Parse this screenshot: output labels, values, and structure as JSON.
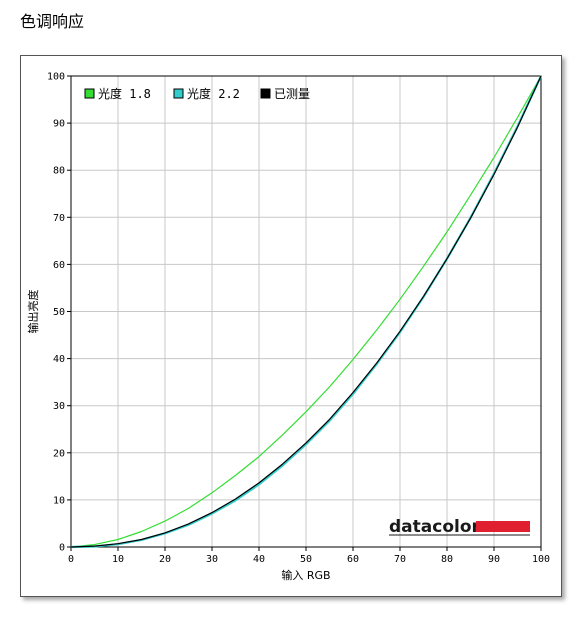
{
  "page": {
    "title": "色调响应"
  },
  "colors": {
    "gamma18": "#33dd33",
    "gamma22": "#33cccc",
    "measured": "#000000",
    "logo_bar": "#e02030"
  },
  "logo": {
    "text": "datacolor"
  },
  "chart_data": {
    "type": "line",
    "title": "",
    "xlabel": "输入 RGB",
    "ylabel": "输出亮度",
    "xlim": [
      0,
      100
    ],
    "ylim": [
      0,
      100
    ],
    "x_ticks": [
      0,
      10,
      20,
      30,
      40,
      50,
      60,
      70,
      80,
      90,
      100
    ],
    "y_ticks": [
      0,
      10,
      20,
      30,
      40,
      50,
      60,
      70,
      80,
      90,
      100
    ],
    "grid": true,
    "legend_position": "top-left",
    "series": [
      {
        "name": "光度 1.8",
        "color": "#33dd33",
        "x": [
          0,
          5,
          10,
          15,
          20,
          25,
          30,
          35,
          40,
          45,
          50,
          55,
          60,
          65,
          70,
          75,
          80,
          85,
          90,
          95,
          100
        ],
        "y": [
          0,
          0.5,
          1.6,
          3.3,
          5.5,
          8.2,
          11.5,
          15.2,
          19.2,
          23.8,
          28.7,
          34.0,
          39.8,
          46.0,
          52.6,
          59.6,
          66.9,
          74.7,
          82.7,
          91.2,
          100
        ]
      },
      {
        "name": "光度 2.2",
        "color": "#33cccc",
        "x": [
          0,
          5,
          10,
          15,
          20,
          25,
          30,
          35,
          40,
          45,
          50,
          55,
          60,
          65,
          70,
          75,
          80,
          85,
          90,
          95,
          100
        ],
        "y": [
          0,
          0.1,
          0.6,
          1.5,
          2.9,
          4.7,
          7.1,
          9.9,
          13.3,
          17.3,
          21.8,
          26.8,
          32.5,
          38.8,
          45.6,
          53.1,
          61.2,
          69.9,
          79.3,
          89.3,
          100
        ]
      },
      {
        "name": "已测量",
        "color": "#000000",
        "x": [
          0,
          5,
          10,
          15,
          20,
          25,
          30,
          35,
          40,
          45,
          50,
          55,
          60,
          65,
          70,
          75,
          80,
          85,
          90,
          95,
          100
        ],
        "y": [
          0,
          0.2,
          0.7,
          1.6,
          3.0,
          4.9,
          7.3,
          10.2,
          13.6,
          17.6,
          22.1,
          27.1,
          32.8,
          39.0,
          45.8,
          53.2,
          61.2,
          69.8,
          79.1,
          89.1,
          100
        ]
      }
    ]
  }
}
